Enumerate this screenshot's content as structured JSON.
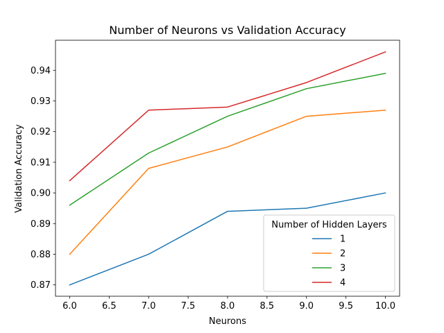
{
  "chart_data": {
    "type": "line",
    "title": "Number of Neurons vs Validation Accuracy",
    "xlabel": "Neurons",
    "ylabel": "Validation Accuracy",
    "xlim": [
      5.82,
      10.18
    ],
    "ylim": [
      0.8663,
      0.9498
    ],
    "x_ticks": [
      6.0,
      6.5,
      7.0,
      7.5,
      8.0,
      8.5,
      9.0,
      9.5,
      10.0
    ],
    "x_tick_labels": [
      "6.0",
      "6.5",
      "7.0",
      "7.5",
      "8.0",
      "8.5",
      "9.0",
      "9.5",
      "10.0"
    ],
    "y_ticks": [
      0.87,
      0.88,
      0.89,
      0.9,
      0.91,
      0.92,
      0.93,
      0.94
    ],
    "y_tick_labels": [
      "0.87",
      "0.88",
      "0.89",
      "0.90",
      "0.91",
      "0.92",
      "0.93",
      "0.94"
    ],
    "grid": false,
    "legend": {
      "title": "Number of Hidden Layers",
      "placement": "lower-right"
    },
    "x": [
      6,
      7,
      8,
      9,
      10
    ],
    "series": [
      {
        "name": "1",
        "color": "#1f77b4",
        "values": [
          0.87,
          0.88,
          0.894,
          0.895,
          0.9
        ]
      },
      {
        "name": "2",
        "color": "#ff7f0e",
        "values": [
          0.88,
          0.908,
          0.915,
          0.925,
          0.927
        ]
      },
      {
        "name": "3",
        "color": "#2ca02c",
        "values": [
          0.896,
          0.913,
          0.925,
          0.934,
          0.939
        ]
      },
      {
        "name": "4",
        "color": "#d62728",
        "values": [
          0.904,
          0.927,
          0.928,
          0.936,
          0.946
        ]
      }
    ]
  }
}
